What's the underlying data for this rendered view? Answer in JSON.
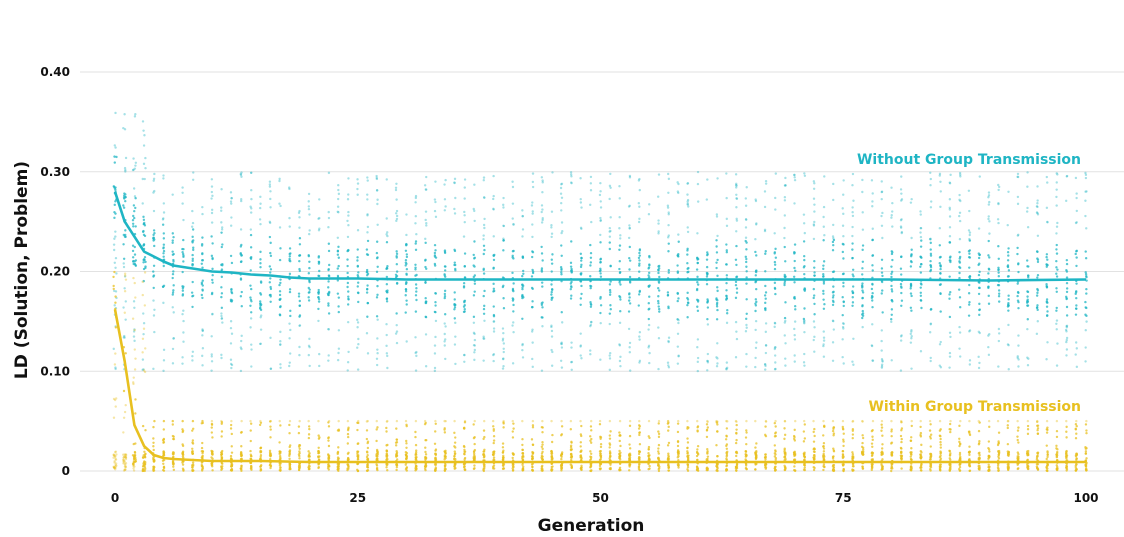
{
  "chart_data": {
    "type": "scatter",
    "title": "",
    "xlabel": "Generation",
    "ylabel": "LD (Solution, Problem)",
    "xlim": [
      0,
      100
    ],
    "ylim": [
      0,
      0.46
    ],
    "x_ticks": [
      0,
      25,
      50,
      75,
      100
    ],
    "x_tick_labels": [
      "0",
      "25",
      "50",
      "75",
      "100"
    ],
    "y_ticks": [
      0,
      0.1,
      0.2,
      0.3,
      0.4
    ],
    "y_tick_labels": [
      "0",
      "0.10",
      "0.20",
      "0.30",
      "0.40"
    ],
    "grid": true,
    "legend": "inline labels at right end of each series",
    "series": [
      {
        "name": "Without Group Transmission",
        "color": "#1fb5c4",
        "mean_line": {
          "x": [
            0,
            1,
            2,
            3,
            4,
            5,
            6,
            8,
            10,
            12,
            14,
            16,
            18,
            20,
            25,
            30,
            40,
            50,
            60,
            70,
            80,
            90,
            100
          ],
          "y": [
            0.28,
            0.25,
            0.235,
            0.22,
            0.215,
            0.21,
            0.206,
            0.203,
            0.2,
            0.199,
            0.197,
            0.196,
            0.194,
            0.193,
            0.193,
            0.192,
            0.192,
            0.192,
            0.192,
            0.192,
            0.192,
            0.191,
            0.192
          ]
        },
        "point_range_main": [
          0.1,
          0.3
        ],
        "point_range_early": [
          0.1,
          0.36
        ]
      },
      {
        "name": "Within Group Transmission",
        "color": "#e8c020",
        "mean_line": {
          "x": [
            0,
            1,
            2,
            3,
            4,
            5,
            6,
            8,
            10,
            15,
            20,
            30,
            50,
            70,
            100
          ],
          "y": [
            0.162,
            0.11,
            0.046,
            0.025,
            0.016,
            0.013,
            0.012,
            0.011,
            0.01,
            0.01,
            0.009,
            0.009,
            0.009,
            0.009,
            0.009
          ]
        },
        "point_range_main": [
          0,
          0.05
        ],
        "point_range_early": [
          0,
          0.2
        ]
      }
    ]
  }
}
